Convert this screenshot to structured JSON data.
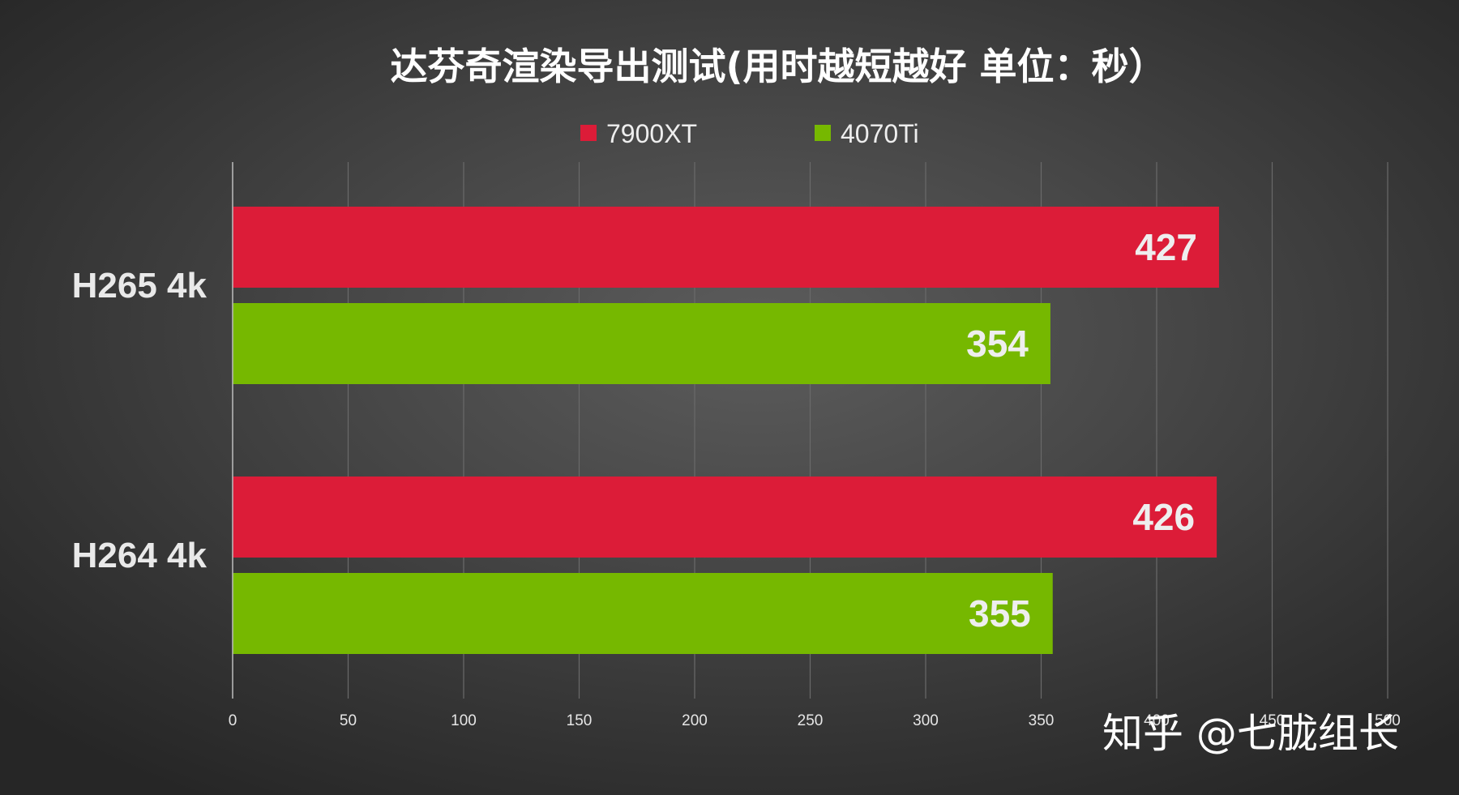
{
  "chart_data": {
    "type": "bar",
    "orientation": "horizontal",
    "title": "达芬奇渲染导出测试(用时越短越好 单位：秒）",
    "categories": [
      "H265 4k",
      "H264 4k"
    ],
    "series": [
      {
        "name": "7900XT",
        "color": "#dc1c38",
        "values": [
          427,
          426
        ]
      },
      {
        "name": "4070Ti",
        "color": "#76b800",
        "values": [
          354,
          355
        ]
      }
    ],
    "xlim": [
      0,
      500
    ],
    "x_ticks": [
      0,
      50,
      100,
      150,
      200,
      250,
      300,
      350,
      400,
      450,
      500
    ],
    "grid": true,
    "legend_position": "top-center",
    "data_labels": true
  },
  "watermark": {
    "text": "知乎 @七胧组长"
  },
  "colors": {
    "background": "#474747",
    "title": "#ffffff",
    "gridline": "#6a6a6a"
  }
}
